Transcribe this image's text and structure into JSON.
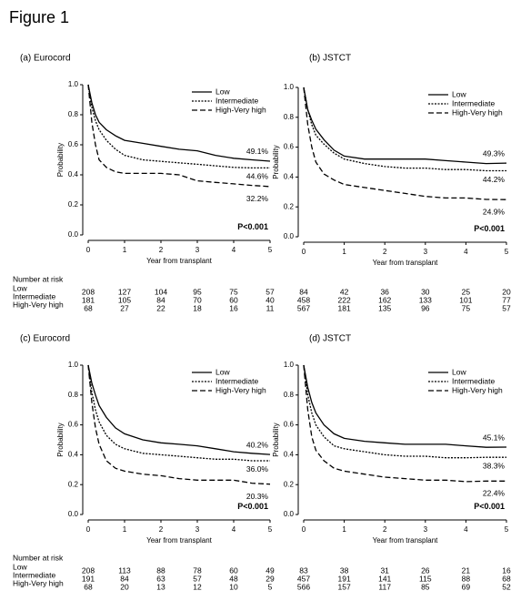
{
  "figure_title": "Figure 1",
  "chart_data": [
    {
      "type": "line",
      "title": "(a) Eurocord",
      "xlabel": "Year from transplant",
      "ylabel": "Probability",
      "x": [
        0,
        0.1,
        0.2,
        0.3,
        0.5,
        0.75,
        1,
        1.5,
        2,
        2.5,
        3,
        3.5,
        4,
        4.5,
        5
      ],
      "series": [
        {
          "name": "Low",
          "color": "#000000",
          "dash": "solid",
          "end_label": "49.1%",
          "values": [
            1,
            0.88,
            0.8,
            0.75,
            0.7,
            0.66,
            0.63,
            0.61,
            0.59,
            0.57,
            0.56,
            0.53,
            0.51,
            0.5,
            0.491
          ]
        },
        {
          "name": "Intermediate",
          "color": "#000000",
          "dash": "dotted",
          "end_label": "44.6%",
          "values": [
            1,
            0.85,
            0.76,
            0.7,
            0.63,
            0.57,
            0.53,
            0.5,
            0.49,
            0.48,
            0.47,
            0.46,
            0.45,
            0.446,
            0.446
          ]
        },
        {
          "name": "High-Very high",
          "color": "#000000",
          "dash": "dashed",
          "end_label": "32.2%",
          "values": [
            1,
            0.75,
            0.6,
            0.5,
            0.45,
            0.42,
            0.41,
            0.41,
            0.41,
            0.4,
            0.36,
            0.35,
            0.34,
            0.33,
            0.322
          ]
        }
      ],
      "p_value": "P<0.001",
      "xlim": [
        0,
        5
      ],
      "xticks": [
        0,
        1,
        2,
        3,
        4,
        5
      ],
      "ylim": [
        0,
        1
      ],
      "yticks": [
        {
          "value": 0,
          "label": "0.0"
        },
        {
          "value": 0.2,
          "label": "0.2"
        },
        {
          "value": 0.4,
          "label": "0.4"
        },
        {
          "value": 0.6,
          "label": "0.6"
        },
        {
          "value": 0.8,
          "label": "0.8"
        },
        {
          "value": 1,
          "label": "1.0"
        }
      ],
      "risk_table": {
        "title": "Number at risk",
        "rows": [
          {
            "name": "Low",
            "values": [
              208,
              127,
              104,
              95,
              75,
              57
            ]
          },
          {
            "name": "Intermediate",
            "values": [
              181,
              105,
              84,
              70,
              60,
              40
            ]
          },
          {
            "name": "High-Very high",
            "values": [
              68,
              27,
              22,
              18,
              16,
              11
            ]
          }
        ]
      }
    },
    {
      "type": "line",
      "title": "(b) JSTCT",
      "xlabel": "Year from transplant",
      "ylabel": "Probability",
      "x": [
        0,
        0.1,
        0.2,
        0.3,
        0.5,
        0.75,
        1,
        1.5,
        2,
        2.5,
        3,
        3.5,
        4,
        4.5,
        5
      ],
      "series": [
        {
          "name": "Low",
          "color": "#000000",
          "dash": "solid",
          "end_label": "49.3%",
          "values": [
            1,
            0.85,
            0.78,
            0.72,
            0.65,
            0.58,
            0.54,
            0.52,
            0.52,
            0.52,
            0.52,
            0.51,
            0.5,
            0.49,
            0.493
          ]
        },
        {
          "name": "Intermediate",
          "color": "#000000",
          "dash": "dotted",
          "end_label": "44.2%",
          "values": [
            1,
            0.85,
            0.75,
            0.68,
            0.62,
            0.56,
            0.52,
            0.49,
            0.47,
            0.46,
            0.46,
            0.45,
            0.45,
            0.442,
            0.442
          ]
        },
        {
          "name": "High-Very high",
          "color": "#000000",
          "dash": "dashed",
          "end_label": "24.9%",
          "values": [
            1,
            0.75,
            0.6,
            0.5,
            0.42,
            0.38,
            0.35,
            0.33,
            0.31,
            0.29,
            0.27,
            0.26,
            0.26,
            0.25,
            0.249
          ]
        }
      ],
      "p_value": "P<0.001",
      "xlim": [
        0,
        5
      ],
      "xticks": [
        0,
        1,
        2,
        3,
        4,
        5
      ],
      "ylim": [
        0,
        1
      ],
      "yticks": [
        {
          "value": 0,
          "label": "0.0"
        },
        {
          "value": 0.2,
          "label": "0.2"
        },
        {
          "value": 0.4,
          "label": "0.4"
        },
        {
          "value": 0.6,
          "label": "0.6"
        },
        {
          "value": 0.8,
          "label": "0.8"
        },
        {
          "value": 1,
          "label": "1.0"
        }
      ],
      "risk_table": {
        "rows": [
          {
            "values": [
              84,
              42,
              36,
              30,
              25,
              20
            ]
          },
          {
            "values": [
              458,
              222,
              162,
              133,
              101,
              77
            ]
          },
          {
            "values": [
              567,
              181,
              135,
              96,
              75,
              57
            ]
          }
        ]
      }
    },
    {
      "type": "line",
      "title": "(c) Eurocord",
      "xlabel": "Year from transplant",
      "ylabel": "Probability",
      "x": [
        0,
        0.1,
        0.2,
        0.3,
        0.5,
        0.75,
        1,
        1.5,
        2,
        2.5,
        3,
        3.5,
        4,
        4.5,
        5
      ],
      "series": [
        {
          "name": "Low",
          "color": "#000000",
          "dash": "solid",
          "end_label": "40.2%",
          "values": [
            1,
            0.88,
            0.8,
            0.73,
            0.65,
            0.58,
            0.54,
            0.5,
            0.48,
            0.47,
            0.46,
            0.44,
            0.42,
            0.41,
            0.402
          ]
        },
        {
          "name": "Intermediate",
          "color": "#000000",
          "dash": "dotted",
          "end_label": "36.0%",
          "values": [
            1,
            0.82,
            0.7,
            0.62,
            0.53,
            0.47,
            0.44,
            0.41,
            0.4,
            0.39,
            0.38,
            0.37,
            0.37,
            0.36,
            0.36
          ]
        },
        {
          "name": "High-Very high",
          "color": "#000000",
          "dash": "dashed",
          "end_label": "20.3%",
          "values": [
            1,
            0.75,
            0.58,
            0.47,
            0.36,
            0.31,
            0.29,
            0.27,
            0.26,
            0.24,
            0.23,
            0.23,
            0.23,
            0.21,
            0.203
          ]
        }
      ],
      "p_value": "P<0.001",
      "xlim": [
        0,
        5
      ],
      "xticks": [
        0,
        1,
        2,
        3,
        4,
        5
      ],
      "ylim": [
        0,
        1
      ],
      "yticks": [
        {
          "value": 0,
          "label": "0.0"
        },
        {
          "value": 0.2,
          "label": "0.2"
        },
        {
          "value": 0.4,
          "label": "0.4"
        },
        {
          "value": 0.6,
          "label": "0.6"
        },
        {
          "value": 0.8,
          "label": "0.8"
        },
        {
          "value": 1,
          "label": "1.0"
        }
      ],
      "risk_table": {
        "title": "Number at risk",
        "rows": [
          {
            "name": "Low",
            "values": [
              208,
              113,
              88,
              78,
              60,
              49
            ]
          },
          {
            "name": "Intermediate",
            "values": [
              191,
              84,
              63,
              57,
              48,
              29
            ]
          },
          {
            "name": "High-Very high",
            "values": [
              68,
              20,
              13,
              12,
              10,
              5
            ]
          }
        ]
      }
    },
    {
      "type": "line",
      "title": "(d) JSTCT",
      "xlabel": "Year from transplant",
      "ylabel": "Probability",
      "x": [
        0,
        0.1,
        0.2,
        0.3,
        0.5,
        0.75,
        1,
        1.5,
        2,
        2.5,
        3,
        3.5,
        4,
        4.5,
        5
      ],
      "series": [
        {
          "name": "Low",
          "color": "#000000",
          "dash": "solid",
          "end_label": "45.1%",
          "values": [
            1,
            0.85,
            0.75,
            0.68,
            0.6,
            0.54,
            0.51,
            0.49,
            0.48,
            0.47,
            0.47,
            0.47,
            0.46,
            0.45,
            0.451
          ]
        },
        {
          "name": "Intermediate",
          "color": "#000000",
          "dash": "dotted",
          "end_label": "38.3%",
          "values": [
            1,
            0.8,
            0.68,
            0.6,
            0.52,
            0.46,
            0.44,
            0.42,
            0.4,
            0.39,
            0.39,
            0.38,
            0.38,
            0.383,
            0.383
          ]
        },
        {
          "name": "High-Very high",
          "color": "#000000",
          "dash": "dashed",
          "end_label": "22.4%",
          "values": [
            1,
            0.7,
            0.52,
            0.43,
            0.36,
            0.31,
            0.29,
            0.27,
            0.25,
            0.24,
            0.23,
            0.23,
            0.22,
            0.224,
            0.224
          ]
        }
      ],
      "p_value": "P<0.001",
      "xlim": [
        0,
        5
      ],
      "xticks": [
        0,
        1,
        2,
        3,
        4,
        5
      ],
      "ylim": [
        0,
        1
      ],
      "yticks": [
        {
          "value": 0,
          "label": "0.0"
        },
        {
          "value": 0.2,
          "label": "0.2"
        },
        {
          "value": 0.4,
          "label": "0.4"
        },
        {
          "value": 0.6,
          "label": "0.6"
        },
        {
          "value": 0.8,
          "label": "0.8"
        },
        {
          "value": 1,
          "label": "1.0"
        }
      ],
      "risk_table": {
        "rows": [
          {
            "values": [
              83,
              38,
              31,
              26,
              21,
              16
            ]
          },
          {
            "values": [
              457,
              191,
              141,
              115,
              88,
              68
            ]
          },
          {
            "values": [
              566,
              157,
              117,
              85,
              69,
              52
            ]
          }
        ]
      }
    }
  ]
}
